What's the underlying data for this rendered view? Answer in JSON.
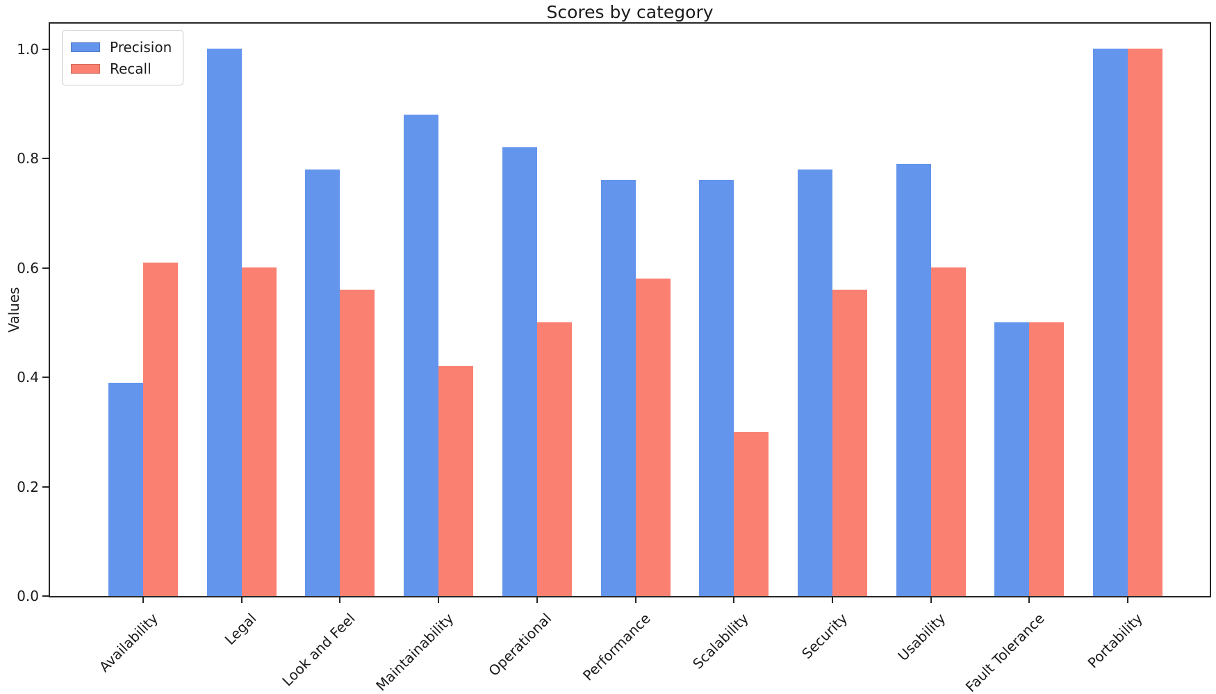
{
  "chart_data": {
    "type": "bar",
    "title": "Scores by category",
    "xlabel": "",
    "ylabel": "Values",
    "categories": [
      "Availability",
      "Legal",
      "Look and Feel",
      "Maintainability",
      "Operational",
      "Performance",
      "Scalability",
      "Security",
      "Usability",
      "Fault Tolerance",
      "Portability"
    ],
    "series": [
      {
        "name": "Precision",
        "color": "#6495ED",
        "values": [
          0.39,
          1.0,
          0.78,
          0.88,
          0.82,
          0.76,
          0.76,
          0.78,
          0.79,
          0.5,
          1.0
        ]
      },
      {
        "name": "Recall",
        "color": "#FA8072",
        "values": [
          0.61,
          0.6,
          0.56,
          0.42,
          0.5,
          0.58,
          0.3,
          0.56,
          0.6,
          0.5,
          1.0
        ]
      }
    ],
    "ylim": [
      0,
      1.05
    ],
    "yticks": [
      "0.0",
      "0.2",
      "0.4",
      "0.6",
      "0.8",
      "1.0"
    ],
    "grid": false,
    "legend_position": "upper left",
    "bar_width": 0.35,
    "x_tick_rotation": 45
  }
}
